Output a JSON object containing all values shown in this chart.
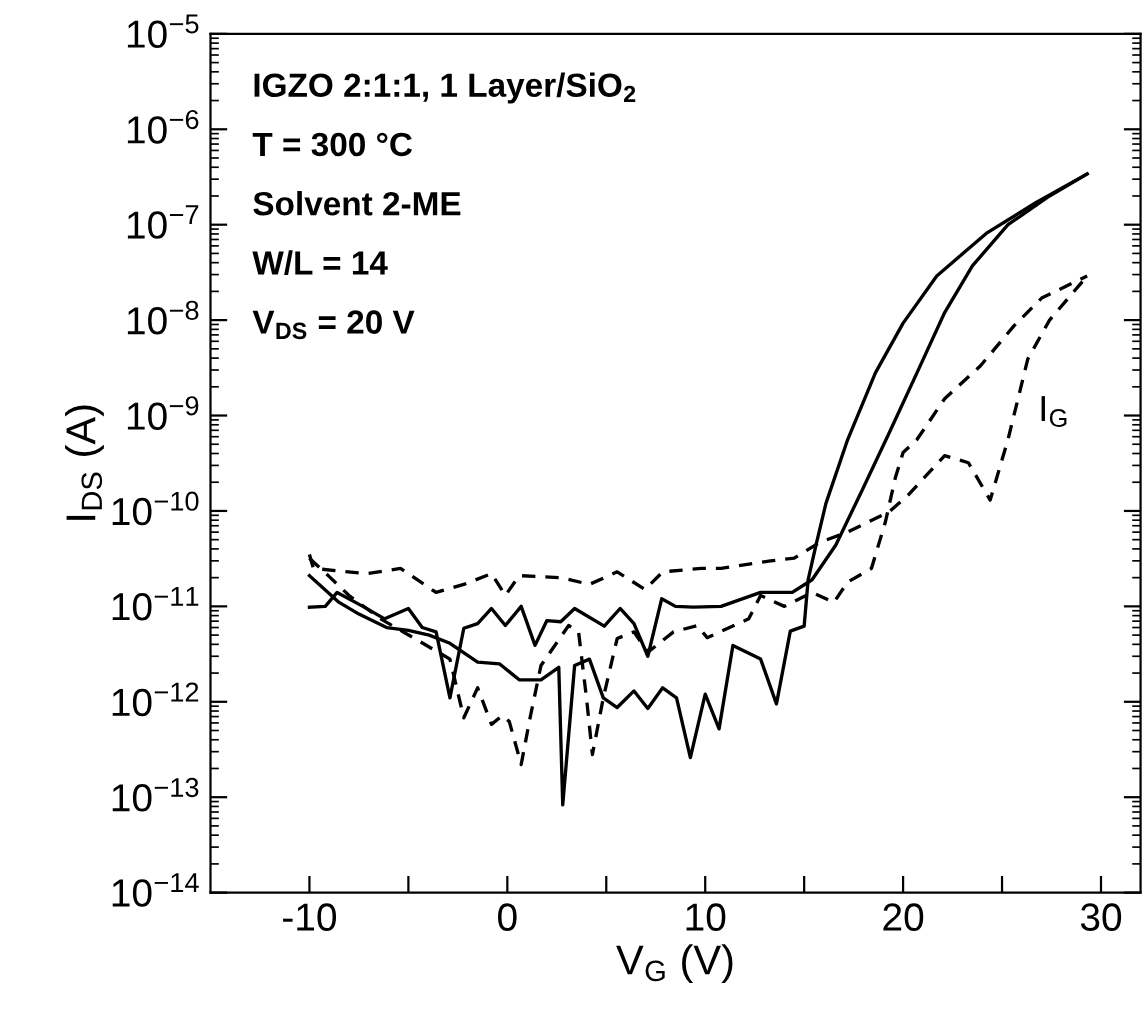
{
  "chart_data": {
    "type": "line",
    "xlabel": "V$_{G}$ (V)",
    "ylabel": "I$_{DS}$ (A)",
    "log": "y",
    "grid": false,
    "legend": false,
    "xlim": [
      -15,
      32
    ],
    "ylim": [
      1e-14,
      1e-05
    ],
    "xticks": [
      -10,
      {
        "value": -5,
        "label": null
      },
      0,
      {
        "value": 5,
        "label": null
      },
      10,
      {
        "value": 15,
        "label": null
      },
      20,
      {
        "value": 25,
        "label": null
      },
      30
    ],
    "yticks": [
      {
        "value": 1e-14,
        "label": "10$^{−14}$"
      },
      {
        "value": 1e-13,
        "label": "10$^{−13}$"
      },
      {
        "value": 1e-12,
        "label": "10$^{−12}$"
      },
      {
        "value": 1e-11,
        "label": "10$^{−11}$"
      },
      {
        "value": 1e-10,
        "label": "10$^{−10}$"
      },
      {
        "value": 1e-09,
        "label": "10$^{−9}$"
      },
      {
        "value": 1e-08,
        "label": "10$^{−8}$"
      },
      {
        "value": 1e-07,
        "label": "10$^{−7}$"
      },
      {
        "value": 1e-06,
        "label": "10$^{−6}$"
      },
      {
        "value": 1e-05,
        "label": "10$^{−5}$"
      }
    ],
    "annotations": [
      "IGZO 2:1:1, 1 Layer/SiO$_{2}$",
      "T = 300 °C",
      "Solvent 2-ME",
      "W/L = 14",
      "V$_{DS}$ = 20 V",
      "I$_{G}$"
    ],
    "series": [
      {
        "color": "#000000",
        "line_style": "solid",
        "x": [
          -10,
          -8.5,
          -7.5,
          -6.1,
          -5.0,
          -3.95,
          -2.9,
          -1.5,
          -0.4,
          0.6,
          1.7,
          2.6,
          2.8,
          3.4,
          4.15,
          4.85,
          5.55,
          6.4,
          7.1,
          7.85,
          8.55,
          9.25,
          10.0,
          10.7,
          11.4,
          12.8,
          13.6,
          14.3,
          15.0,
          15.2,
          15.6,
          16.1,
          17.2,
          18.6,
          20.0,
          21.7,
          24.2,
          26.7,
          29.3
        ],
        "values": [
          2.1e-11,
          1.1e-11,
          8.3e-12,
          6e-12,
          5.6e-12,
          5e-12,
          4.1e-12,
          2.6e-12,
          2.5e-12,
          1.7e-12,
          1.7e-12,
          2.3e-12,
          8.3e-14,
          2.4e-12,
          2.8e-12,
          1.1e-12,
          8.7e-13,
          1.3e-12,
          8.5e-13,
          1.4e-12,
          1.1e-12,
          2.6e-13,
          1.2e-12,
          5.2e-13,
          3.9e-12,
          2.8e-12,
          9.5e-13,
          5.5e-12,
          6.2e-12,
          1.9e-11,
          4.4e-11,
          1.2e-10,
          5.6e-10,
          2.8e-09,
          9.3e-09,
          2.9e-08,
          8.1e-08,
          1.7e-07,
          3.4e-07
        ]
      },
      {
        "color": "#000000",
        "line_style": "solid",
        "x": [
          -10,
          -9.2,
          -8.6,
          -7.3,
          -6.2,
          -5.0,
          -4.3,
          -3.6,
          -2.9,
          -2.2,
          -1.5,
          -0.8,
          -0.1,
          0.7,
          1.4,
          2.0,
          2.7,
          3.4,
          4.9,
          5.7,
          6.4,
          7.1,
          7.8,
          8.5,
          9.4,
          10.8,
          12.8,
          14.4,
          15.4,
          16.6,
          17.9,
          19.3,
          20.7,
          22.1,
          23.5,
          25.3,
          27.4,
          29.3
        ],
        "values": [
          9.8e-12,
          1e-11,
          1.4e-11,
          1e-11,
          7.4e-12,
          9.5e-12,
          6e-12,
          5.4e-12,
          1.1e-12,
          5.9e-12,
          6.6e-12,
          9.5e-12,
          6.3e-12,
          1e-11,
          3.9e-12,
          7.1e-12,
          6.9e-12,
          9.5e-12,
          6.2e-12,
          9.5e-12,
          6.6e-12,
          3e-12,
          1.2e-11,
          1e-11,
          9.8e-12,
          1e-11,
          1.4e-11,
          1.4e-11,
          1.9e-11,
          4.4e-11,
          1.6e-10,
          6.6e-10,
          2.8e-09,
          1.2e-08,
          3.7e-08,
          1e-07,
          2e-07,
          3.4e-07
        ]
      },
      {
        "color": "#000000",
        "line_style": "dashed",
        "x": [
          -10,
          -9.8,
          -7.1,
          -5.4,
          -3.6,
          -2.2,
          -0.8,
          -0.1,
          0.6,
          2.7,
          4.15,
          5.55,
          6.96,
          7.85,
          9.8,
          10.8,
          13.3,
          14.5,
          15.8,
          17.2,
          19.3,
          20.3,
          22.1,
          23.3,
          24.4,
          25.3,
          26.3,
          27.4,
          29.3
        ],
        "values": [
          3.5e-11,
          2.5e-11,
          2.2e-11,
          2.5e-11,
          1.4e-11,
          1.7e-11,
          2.2e-11,
          1.3e-11,
          2.1e-11,
          2e-11,
          1.7e-11,
          2.3e-11,
          1.5e-11,
          2.3e-11,
          2.5e-11,
          2.5e-11,
          3e-11,
          3.2e-11,
          4.7e-11,
          6e-11,
          9.8e-11,
          1.5e-10,
          3.8e-10,
          3.2e-10,
          1.3e-10,
          5.6e-10,
          3.9e-09,
          1e-08,
          2.9e-08
        ]
      },
      {
        "color": "#000000",
        "line_style": "dashed",
        "x": [
          -10,
          -9.05,
          -8.0,
          -6.4,
          -3.8,
          -2.9,
          -2.2,
          -1.5,
          -0.8,
          -0.25,
          0.1,
          0.7,
          1.15,
          1.7,
          3.1,
          3.6,
          4.0,
          4.3,
          4.85,
          5.55,
          6.4,
          7.1,
          8.4,
          9.6,
          10.1,
          12.2,
          12.8,
          14.0,
          15.4,
          16.5,
          17.2,
          18.4,
          19.1,
          19.6,
          20.0,
          20.7,
          22.1,
          23.9,
          25.6,
          27.0,
          29.3
        ],
        "values": [
          3.2e-11,
          2.1e-11,
          1.3e-11,
          7.4e-12,
          3.6e-12,
          2.8e-12,
          6.8e-13,
          1.4e-12,
          5.8e-13,
          7.2e-13,
          6.2e-13,
          2.2e-13,
          6.8e-13,
          2.4e-12,
          6.3e-12,
          5.4e-12,
          1.1e-12,
          2.8e-13,
          1.1e-12,
          4.6e-12,
          5.4e-12,
          3.3e-12,
          5.4e-12,
          6.3e-12,
          4.7e-12,
          7.4e-12,
          1.3e-11,
          1e-11,
          1.4e-11,
          1.1e-11,
          1.8e-11,
          2.5e-11,
          7.6e-11,
          2.2e-10,
          4.1e-10,
          5.6e-10,
          1.5e-09,
          3.3e-09,
          8.7e-09,
          1.7e-08,
          2.9e-08
        ]
      }
    ]
  }
}
